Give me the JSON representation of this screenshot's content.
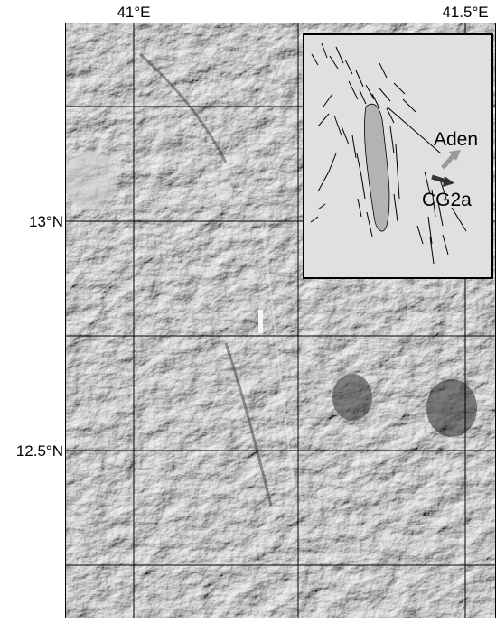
{
  "map": {
    "x_labels": [
      "41°E",
      "41.5°E"
    ],
    "y_labels": [
      "13°N",
      "12.5°N"
    ],
    "inset": {
      "labels": [
        "Aden",
        "CG2a"
      ]
    }
  }
}
